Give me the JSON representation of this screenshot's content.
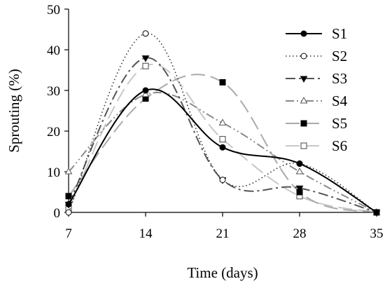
{
  "chart_data": {
    "type": "line",
    "title": "",
    "xlabel": "Time (days)",
    "ylabel": "Sprouting (%)",
    "x": [
      7,
      14,
      21,
      28,
      35
    ],
    "x_ticks": [
      "7",
      "14",
      "21",
      "28",
      "35"
    ],
    "y_ticks": [
      "0",
      "10",
      "20",
      "30",
      "40",
      "50"
    ],
    "xlim": [
      7,
      35
    ],
    "ylim": [
      0,
      50
    ],
    "grid": false,
    "legend_position": "top-right",
    "series": [
      {
        "name": "S1",
        "values": [
          2,
          30,
          16,
          12,
          0
        ],
        "color": "#000000",
        "marker": "filled-circle",
        "dash": "solid"
      },
      {
        "name": "S2",
        "values": [
          0,
          44,
          8,
          12,
          0
        ],
        "color": "#333333",
        "marker": "open-circle",
        "dash": "dotted"
      },
      {
        "name": "S3",
        "values": [
          2,
          38,
          8,
          6,
          0
        ],
        "color": "#555555",
        "marker": "filled-triangle-down",
        "dash": "dash-dot"
      },
      {
        "name": "S4",
        "values": [
          10,
          29,
          22,
          10,
          0
        ],
        "color": "#8a8a8a",
        "marker": "open-triangle-up",
        "dash": "dash-dot-dot"
      },
      {
        "name": "S5",
        "values": [
          4,
          28,
          32,
          5,
          0
        ],
        "color": "#aaaaaa",
        "marker": "filled-square",
        "dash": "long-dash"
      },
      {
        "name": "S6",
        "values": [
          1,
          36,
          18,
          4,
          0
        ],
        "color": "#c8c8c8",
        "marker": "open-square",
        "dash": "long-dash"
      }
    ]
  }
}
